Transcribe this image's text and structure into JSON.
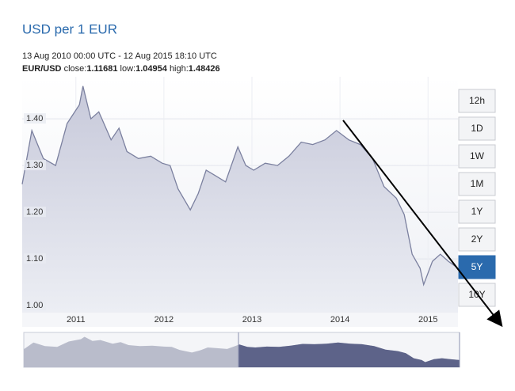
{
  "chart_data": {
    "type": "line",
    "title": "USD per 1 EUR",
    "subtitle": "13 Aug 2010 00:00 UTC - 12 Aug 2015 18:10 UTC",
    "pair": "EUR/USD",
    "stats": [
      {
        "label": "close:",
        "value": 1.11681
      },
      {
        "label": "low:",
        "value": 1.04954
      },
      {
        "label": "high:",
        "value": 1.48426
      }
    ],
    "x": [
      2010.39,
      2010.5,
      2010.63,
      2010.77,
      2010.9,
      2011.04,
      2011.08,
      2011.17,
      2011.26,
      2011.4,
      2011.49,
      2011.58,
      2011.71,
      2011.85,
      2011.98,
      2012.07,
      2012.16,
      2012.3,
      2012.39,
      2012.48,
      2012.57,
      2012.7,
      2012.84,
      2012.93,
      2013.02,
      2013.15,
      2013.29,
      2013.42,
      2013.56,
      2013.69,
      2013.83,
      2013.96,
      2014.1,
      2014.23,
      2014.37,
      2014.5,
      2014.64,
      2014.73,
      2014.82,
      2014.91,
      2014.95,
      2015.05,
      2015.14,
      2015.23,
      2015.34
    ],
    "series": [
      {
        "color": "#7b809f",
        "values": [
          1.26,
          1.375,
          1.315,
          1.3,
          1.39,
          1.43,
          1.47,
          1.4,
          1.415,
          1.355,
          1.38,
          1.33,
          1.315,
          1.32,
          1.305,
          1.3,
          1.25,
          1.205,
          1.24,
          1.29,
          1.28,
          1.265,
          1.34,
          1.3,
          1.29,
          1.305,
          1.3,
          1.32,
          1.35,
          1.345,
          1.355,
          1.375,
          1.355,
          1.345,
          1.315,
          1.255,
          1.23,
          1.195,
          1.11,
          1.08,
          1.045,
          1.095,
          1.11,
          1.095,
          1.08
        ]
      }
    ],
    "xlim": [
      2010.39,
      2015.34
    ],
    "xticks": [
      2011,
      2012,
      2013,
      2014,
      2015
    ],
    "ylim": [
      0.985,
      1.49
    ],
    "yticks": [
      {
        "value": 1,
        "label": "1.00"
      },
      {
        "value": 1.1,
        "label": "1.10"
      },
      {
        "value": 1.2,
        "label": "1.20"
      },
      {
        "value": 1.3,
        "label": "1.30"
      },
      {
        "value": 1.4,
        "label": "1.40"
      }
    ],
    "grid": true,
    "range_buttons": [
      "12h",
      "1D",
      "1W",
      "1M",
      "1Y",
      "2Y",
      "5Y",
      "10Y"
    ],
    "active_range": "5Y"
  }
}
